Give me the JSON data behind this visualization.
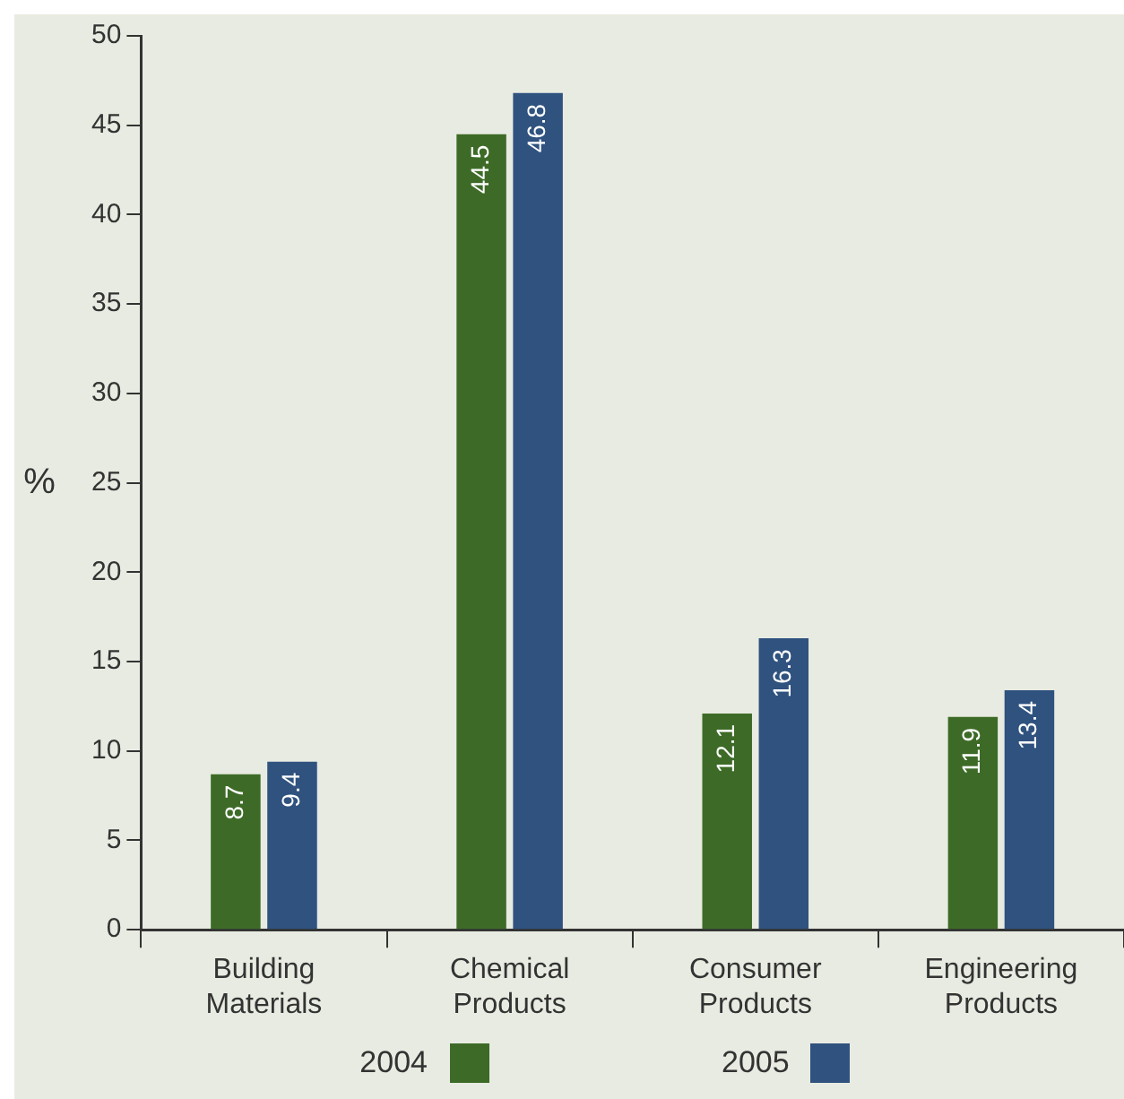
{
  "chart_data": {
    "type": "bar",
    "ylabel": "%",
    "categories": [
      "Building Materials",
      "Chemical Products",
      "Consumer Products",
      "Engineering Products"
    ],
    "series": [
      {
        "name": "2004",
        "color": "#3d6b27",
        "values": [
          8.7,
          44.5,
          12.1,
          11.9
        ]
      },
      {
        "name": "2005",
        "color": "#2f527f",
        "values": [
          9.4,
          46.8,
          16.3,
          13.4
        ]
      }
    ],
    "ylim": [
      0,
      50
    ],
    "yticks": [
      0,
      5,
      10,
      15,
      20,
      25,
      30,
      35,
      40,
      45,
      50
    ],
    "grid": false,
    "legend": "bottom",
    "data_labels": true
  }
}
